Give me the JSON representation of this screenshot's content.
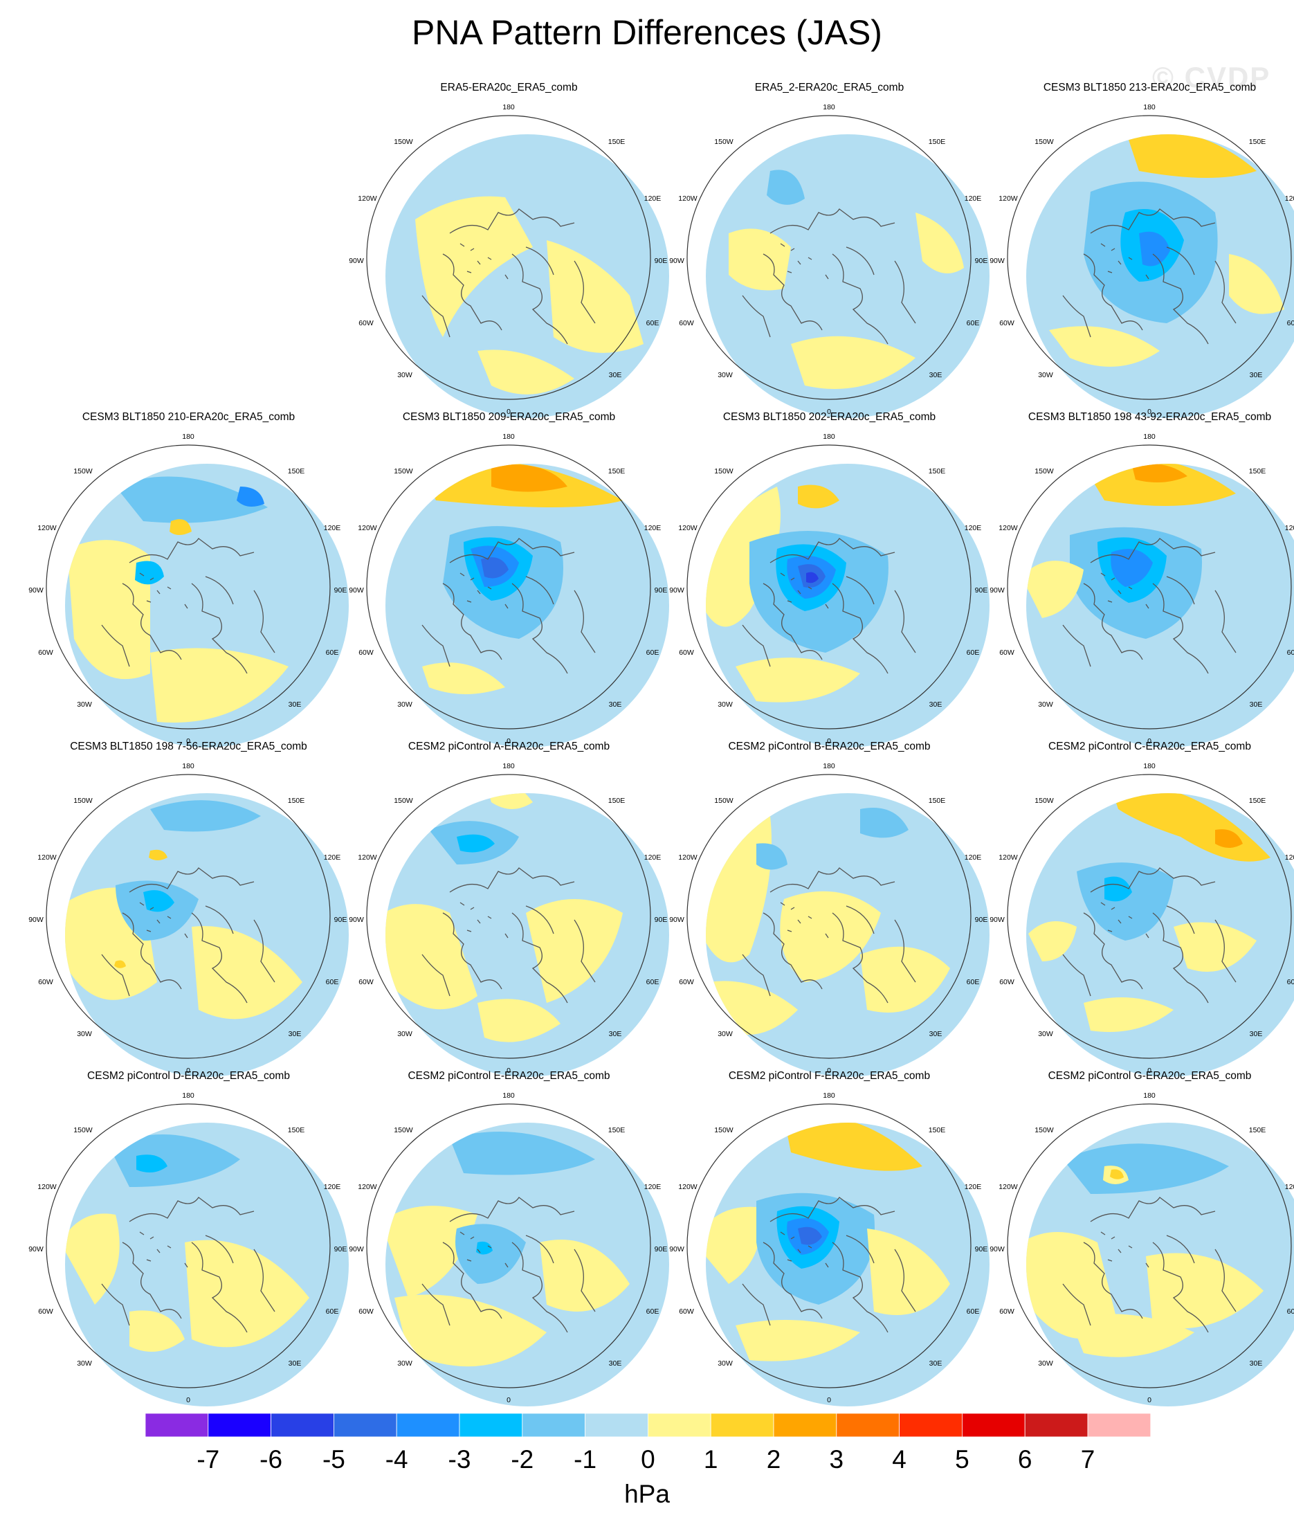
{
  "title": "PNA Pattern Differences (JAS)",
  "watermark": "© CVDP",
  "map_labels": {
    "top": "180",
    "bottom": "0",
    "upper_left": "150W",
    "upper_right": "150E",
    "mid_upper_left": "120W",
    "mid_upper_right": "120E",
    "left": "90W",
    "right": "90E",
    "lower_mid_left": "60W",
    "lower_mid_right": "60E",
    "lower_left": "30W",
    "lower_right": "30E"
  },
  "panels": [
    {
      "title": "ERA5-ERA20c_ERA5_comb",
      "blobs": []
    },
    {
      "title": "ERA5_2-ERA20c_ERA5_comb",
      "blobs": []
    },
    {
      "title": "CESM3 BLT1850 213-ERA20c_ERA5_comb",
      "blobs": []
    },
    {
      "title": "CESM3 BLT1850 210-ERA20c_ERA5_comb",
      "blobs": []
    },
    {
      "title": "CESM3 BLT1850 209-ERA20c_ERA5_comb",
      "blobs": []
    },
    {
      "title": "CESM3 BLT1850 202-ERA20c_ERA5_comb",
      "blobs": []
    },
    {
      "title": "CESM3 BLT1850 198 43-92-ERA20c_ERA5_comb",
      "blobs": []
    },
    {
      "title": "CESM3 BLT1850 198 7-56-ERA20c_ERA5_comb",
      "blobs": []
    },
    {
      "title": "CESM2 piControl A-ERA20c_ERA5_comb",
      "blobs": []
    },
    {
      "title": "CESM2 piControl B-ERA20c_ERA5_comb",
      "blobs": []
    },
    {
      "title": "CESM2 piControl C-ERA20c_ERA5_comb",
      "blobs": []
    },
    {
      "title": "CESM2 piControl D-ERA20c_ERA5_comb",
      "blobs": []
    },
    {
      "title": "CESM2 piControl E-ERA20c_ERA5_comb",
      "blobs": []
    },
    {
      "title": "CESM2 piControl F-ERA20c_ERA5_comb",
      "blobs": []
    },
    {
      "title": "CESM2 piControl G-ERA20c_ERA5_comb",
      "blobs": []
    }
  ],
  "colorbar": {
    "units": "hPa",
    "labels": [
      "-7",
      "-6",
      "-5",
      "-4",
      "-3",
      "-2",
      "-1",
      "0",
      "1",
      "2",
      "3",
      "4",
      "5",
      "6",
      "7"
    ],
    "colors": [
      "#8a2be2",
      "#1a00ff",
      "#2840e6",
      "#2e6de6",
      "#1e90ff",
      "#00bfff",
      "#6ec6f2",
      "#b3def2",
      "#fff68f",
      "#ffd42a",
      "#ffa500",
      "#ff7200",
      "#ff2d00",
      "#e60000",
      "#cc1a1a",
      "#ffb3b3"
    ]
  }
}
